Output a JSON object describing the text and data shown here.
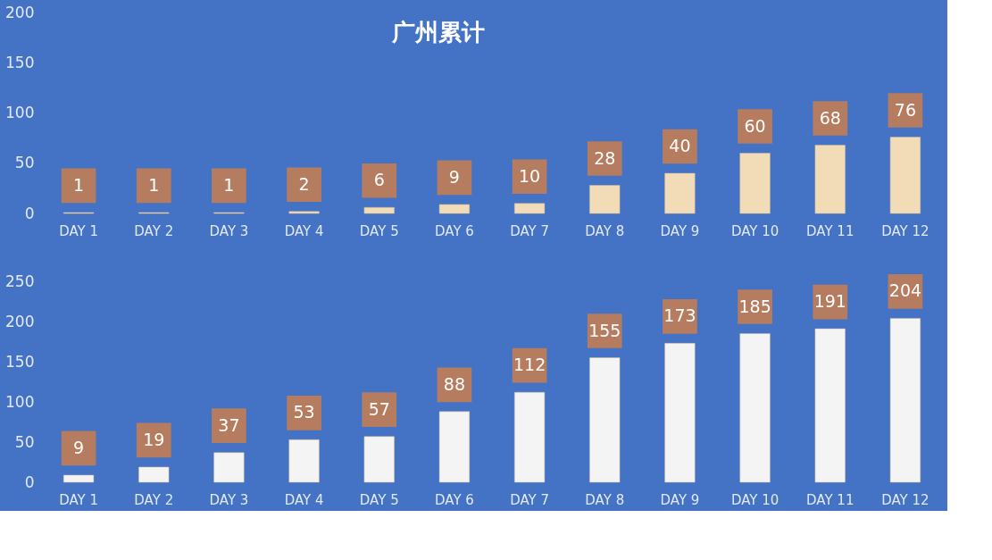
{
  "chart_data": [
    {
      "type": "bar",
      "title": "广州累计",
      "categories": [
        "DAY 1",
        "DAY 2",
        "DAY 3",
        "DAY 4",
        "DAY 5",
        "DAY 6",
        "DAY 7",
        "DAY 8",
        "DAY 9",
        "DAY 10",
        "DAY 11",
        "DAY 12"
      ],
      "series": [
        {
          "color": "#f2dcb8",
          "values": [
            1,
            1,
            1,
            2,
            6,
            9,
            10,
            28,
            40,
            60,
            68,
            76
          ]
        }
      ],
      "ylim": [
        0,
        200
      ],
      "yticks": [
        0,
        50,
        100,
        150,
        200
      ],
      "data_labels": true
    },
    {
      "type": "bar",
      "categories": [
        "DAY 1",
        "DAY 2",
        "DAY 3",
        "DAY 4",
        "DAY 5",
        "DAY 6",
        "DAY 7",
        "DAY 8",
        "DAY 9",
        "DAY 10",
        "DAY 11",
        "DAY 12"
      ],
      "series": [
        {
          "color": "#f4f4f4",
          "values": [
            9,
            19,
            37,
            53,
            57,
            88,
            112,
            155,
            173,
            185,
            191,
            204
          ]
        }
      ],
      "ylim": [
        0,
        250
      ],
      "yticks": [
        0,
        50,
        100,
        150,
        200,
        250
      ],
      "data_labels": true
    }
  ]
}
